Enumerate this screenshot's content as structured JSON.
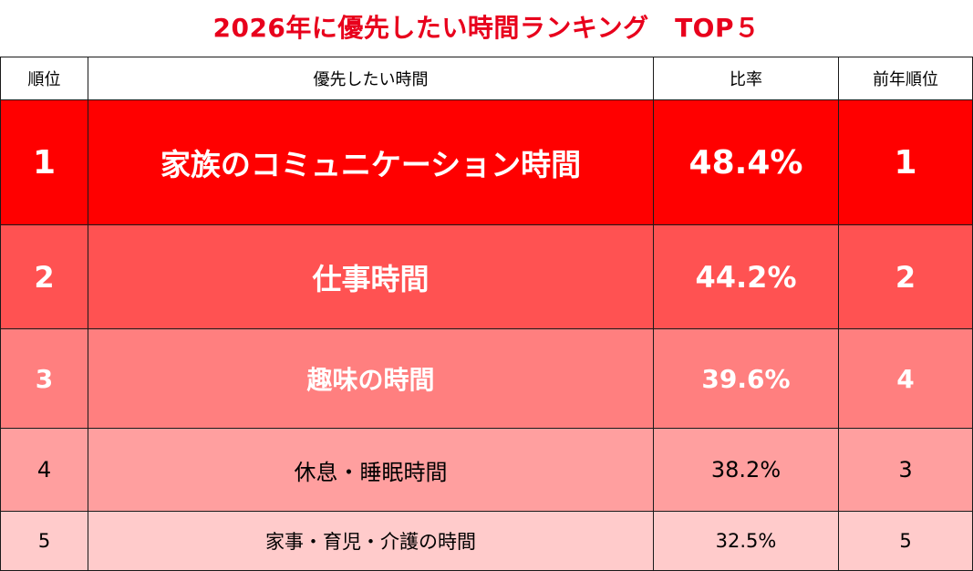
{
  "title": "2026年に優先したい時間ランキング　TOP５",
  "table": {
    "headers": [
      "順位",
      "優先したい時間",
      "比率",
      "前年順位"
    ],
    "rows": [
      {
        "rank": "1",
        "item": "家族のコミュニケーション時間",
        "ratio": "48.4%",
        "prev_rank": "1"
      },
      {
        "rank": "2",
        "item": "仕事時間",
        "ratio": "44.2%",
        "prev_rank": "2"
      },
      {
        "rank": "3",
        "item": "趣味の時間",
        "ratio": "39.6%",
        "prev_rank": "4"
      },
      {
        "rank": "4",
        "item": "休息・睡眠時間",
        "ratio": "38.2%",
        "prev_rank": "3"
      },
      {
        "rank": "5",
        "item": "家事・育児・介護の時間",
        "ratio": "32.5%",
        "prev_rank": "5"
      }
    ]
  },
  "colors": {
    "title": "#e8001c",
    "row1": "#ff0000",
    "row2": "#ff5252",
    "row3": "#ff7f7f",
    "row4": "#ff9f9f",
    "row5": "#ffcbcb"
  },
  "chart_data": {
    "type": "table",
    "title": "2026年に優先したい時間ランキング　TOP５",
    "columns": [
      "順位",
      "優先したい時間",
      "比率",
      "前年順位"
    ],
    "rows": [
      [
        1,
        "家族のコミュニケーション時間",
        48.4,
        1
      ],
      [
        2,
        "仕事時間",
        44.2,
        2
      ],
      [
        3,
        "趣味の時間",
        39.6,
        4
      ],
      [
        4,
        "休息・睡眠時間",
        38.2,
        3
      ],
      [
        5,
        "家事・育児・介護の時間",
        32.5,
        5
      ]
    ]
  }
}
